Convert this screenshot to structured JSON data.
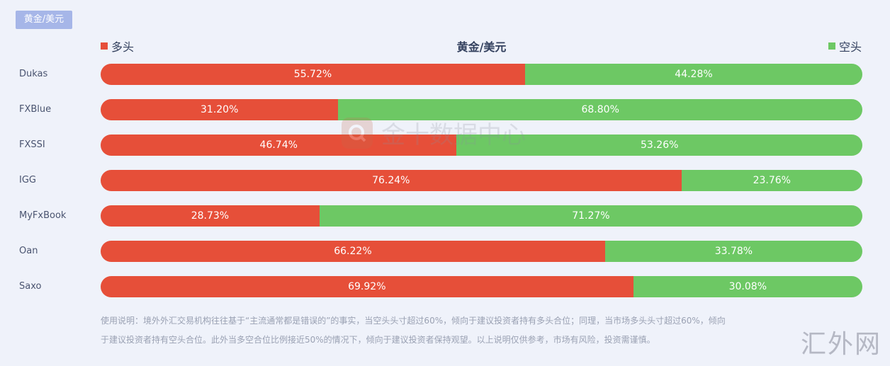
{
  "tab": {
    "label": "黄金/美元"
  },
  "legend": {
    "long_label": "多头",
    "short_label": "空头"
  },
  "colors": {
    "long": "#e64f39",
    "short": "#6dc864",
    "tab": "#a6b6e8"
  },
  "watermark": {
    "text": "金十数据中心"
  },
  "corner_mark": "汇外网",
  "note": {
    "line1": "使用说明：境外外汇交易机构往往基于“主流通常都是错误的”的事实，当空头头寸超过60%，倾向于建议投资者持有多头合位；同理，当市场多头头寸超过60%，倾向",
    "line2": "于建议投资者持有空头合位。此外当多空合位比例接近50%的情况下，倾向于建议投资者保持观望。以上说明仅供参考，市场有风险，投资需谨慎。"
  },
  "chart_data": {
    "type": "bar",
    "orientation": "horizontal",
    "stacked": true,
    "title": "黄金/美元",
    "categories": [
      "Dukas",
      "FXBlue",
      "FXSSI",
      "IGG",
      "MyFxBook",
      "Oan",
      "Saxo"
    ],
    "series": [
      {
        "name": "多头",
        "color": "#e64f39",
        "values": [
          55.72,
          31.2,
          46.74,
          76.24,
          28.73,
          66.22,
          69.92
        ],
        "labels": [
          "55.72%",
          "31.20%",
          "46.74%",
          "76.24%",
          "28.73%",
          "66.22%",
          "69.92%"
        ]
      },
      {
        "name": "空头",
        "color": "#6dc864",
        "values": [
          44.28,
          68.8,
          53.26,
          23.76,
          71.27,
          33.78,
          30.08
        ],
        "labels": [
          "44.28%",
          "68.80%",
          "53.26%",
          "23.76%",
          "71.27%",
          "33.78%",
          "30.08%"
        ]
      }
    ],
    "xlim": [
      0,
      100
    ],
    "legend_placement": "top"
  }
}
